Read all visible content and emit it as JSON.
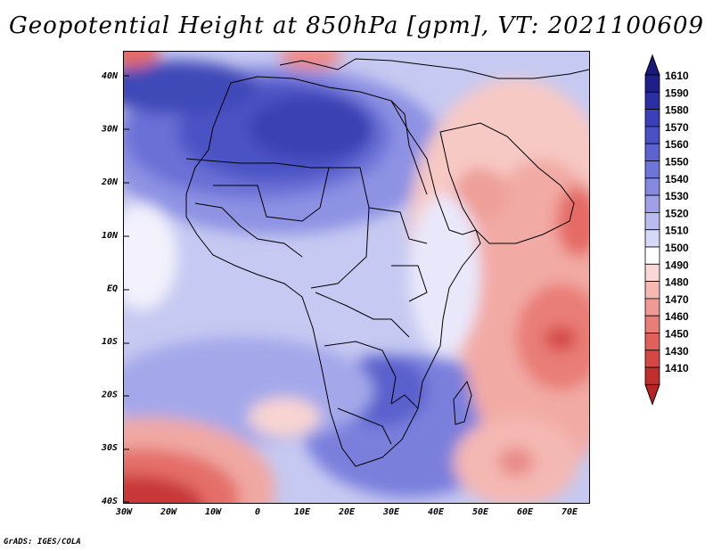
{
  "title": "Geopotential Height at 850hPa [gpm], VT: 2021100609",
  "footer": "GrADS: IGES/COLA",
  "axes": {
    "lat_labels": [
      "40N",
      "30N",
      "20N",
      "10N",
      "EQ",
      "10S",
      "20S",
      "30S",
      "40S"
    ],
    "lon_labels": [
      "30W",
      "20W",
      "10W",
      "0",
      "10E",
      "20E",
      "30E",
      "40E",
      "50E",
      "60E",
      "70E"
    ]
  },
  "legend": {
    "levels": [
      {
        "value": "1610",
        "color": "#1f1f8a"
      },
      {
        "value": "1590",
        "color": "#2a2fa3"
      },
      {
        "value": "1580",
        "color": "#3a3fb8"
      },
      {
        "value": "1570",
        "color": "#4a50c6"
      },
      {
        "value": "1560",
        "color": "#5c62d0"
      },
      {
        "value": "1550",
        "color": "#6e74d8"
      },
      {
        "value": "1540",
        "color": "#8488e0"
      },
      {
        "value": "1530",
        "color": "#9ea1e8"
      },
      {
        "value": "1520",
        "color": "#babcf0"
      },
      {
        "value": "1510",
        "color": "#d6d8f7"
      },
      {
        "value": "1500",
        "color": "#ffffff"
      },
      {
        "value": "1490",
        "color": "#fbd8d5"
      },
      {
        "value": "1480",
        "color": "#f5b8b3"
      },
      {
        "value": "1470",
        "color": "#f09a94"
      },
      {
        "value": "1460",
        "color": "#e97d77"
      },
      {
        "value": "1450",
        "color": "#e0605c"
      },
      {
        "value": "1430",
        "color": "#d54744"
      },
      {
        "value": "1410",
        "color": "#c22e2e"
      }
    ],
    "end_colors": {
      "top": "#1a1a7a",
      "bottom": "#b82323"
    }
  }
}
